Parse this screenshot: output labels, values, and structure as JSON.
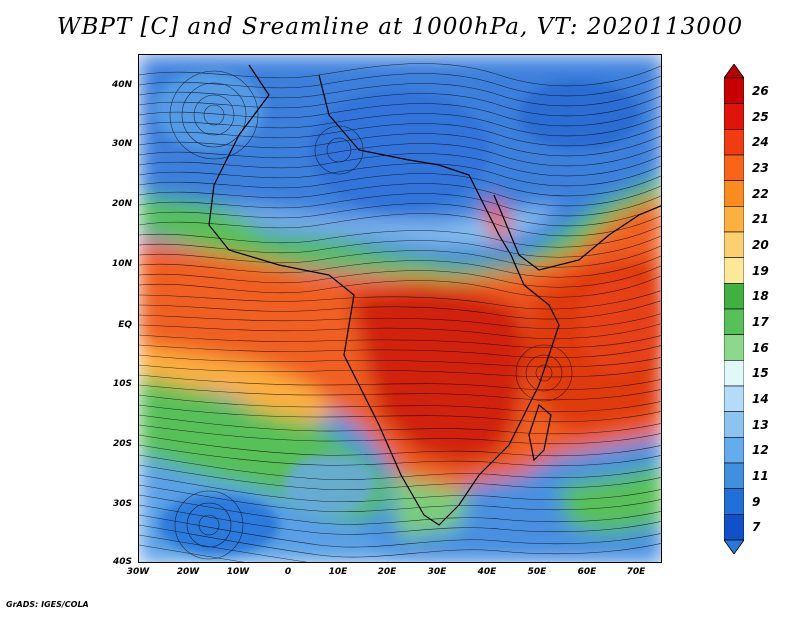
{
  "title": "WBPT [C] and Sreamline at 1000hPa, VT: 2020113000",
  "credit": "GrADS: IGES/COLA",
  "map": {
    "lat_ticks": [
      "40N",
      "30N",
      "20N",
      "10N",
      "EQ",
      "10S",
      "20S",
      "30S",
      "40S"
    ],
    "lon_ticks": [
      "30W",
      "20W",
      "10W",
      "0",
      "10E",
      "20E",
      "30E",
      "40E",
      "50E",
      "60E",
      "70E"
    ]
  },
  "colorbar": {
    "labels": [
      "26",
      "25",
      "24",
      "23",
      "22",
      "21",
      "20",
      "19",
      "18",
      "17",
      "16",
      "15",
      "14",
      "13",
      "12",
      "11",
      "9",
      "7"
    ],
    "colors": [
      "#c80000",
      "#e0140a",
      "#f03c10",
      "#f86418",
      "#fc8c20",
      "#fcb040",
      "#fcd070",
      "#fce898",
      "#40b040",
      "#58c058",
      "#8cd88c",
      "#e0f8f8",
      "#b4dcf8",
      "#8cc4f0",
      "#64acec",
      "#4090e0",
      "#2070d8",
      "#1050c8"
    ],
    "top_arrow_color": "#b40000",
    "bottom_arrow_color": "#2878dc"
  }
}
